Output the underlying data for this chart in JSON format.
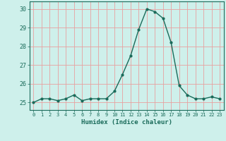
{
  "x": [
    0,
    1,
    2,
    3,
    4,
    5,
    6,
    7,
    8,
    9,
    10,
    11,
    12,
    13,
    14,
    15,
    16,
    17,
    18,
    19,
    20,
    21,
    22,
    23
  ],
  "y": [
    25.0,
    25.2,
    25.2,
    25.1,
    25.2,
    25.4,
    25.1,
    25.2,
    25.2,
    25.2,
    25.6,
    26.5,
    27.5,
    28.9,
    30.0,
    29.85,
    29.5,
    28.2,
    25.9,
    25.4,
    25.2,
    25.2,
    25.3,
    25.2
  ],
  "xlabel": "Humidex (Indice chaleur)",
  "ylim": [
    24.6,
    30.4
  ],
  "xlim": [
    -0.5,
    23.5
  ],
  "yticks": [
    25,
    26,
    27,
    28,
    29,
    30
  ],
  "xticks": [
    0,
    1,
    2,
    3,
    4,
    5,
    6,
    7,
    8,
    9,
    10,
    11,
    12,
    13,
    14,
    15,
    16,
    17,
    18,
    19,
    20,
    21,
    22,
    23
  ],
  "line_color": "#1a6b5a",
  "marker_color": "#1a6b5a",
  "bg_color": "#cef0eb",
  "grid_major_color": "#e8a0a0",
  "grid_minor_color": "#e8c8c8",
  "axis_color": "#1a6b5a",
  "tick_label_color": "#1a6b5a",
  "xlabel_color": "#1a6b5a"
}
